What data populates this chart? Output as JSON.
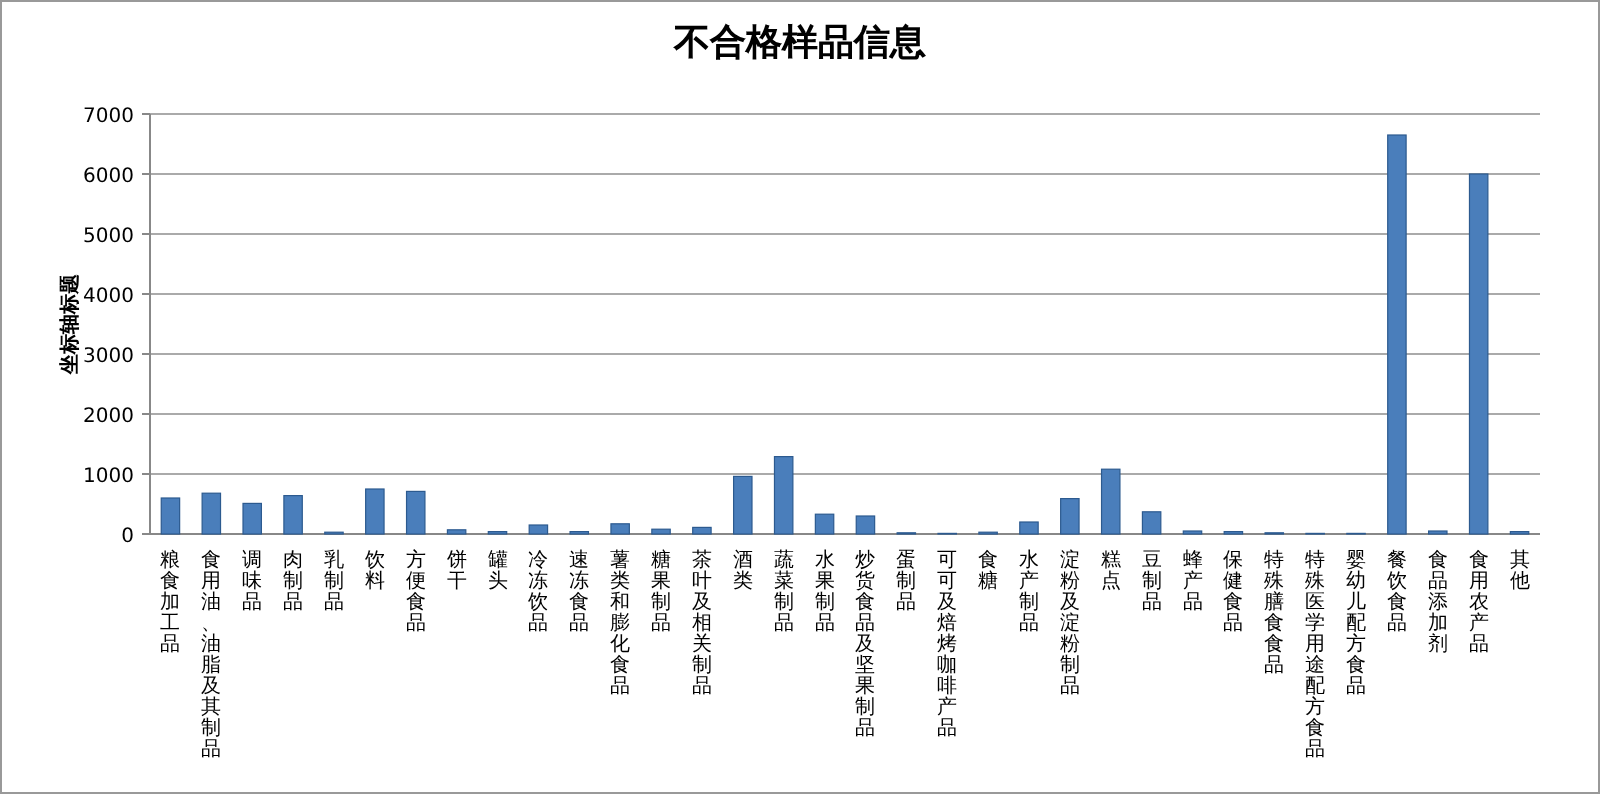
{
  "chart_data": {
    "type": "bar",
    "title": "不合格样品信息",
    "ylabel": "坐标轴标题",
    "categories": [
      "粮食加工品",
      "食用油、油脂及其制品",
      "调味品",
      "肉制品",
      "乳制品",
      "饮料",
      "方便食品",
      "饼干",
      "罐头",
      "冷冻饮品",
      "速冻食品",
      "薯类和膨化食品",
      "糖果制品",
      "茶叶及相关制品",
      "酒类",
      "蔬菜制品",
      "水果制品",
      "炒货食品及坚果制品",
      "蛋制品",
      "可可及焙烤咖啡产品",
      "食糖",
      "水产制品",
      "淀粉及淀粉制品",
      "糕点",
      "豆制品",
      "蜂产品",
      "保健食品",
      "特殊膳食食品",
      "特殊医学用途配方食品",
      "婴幼儿配方食品",
      "餐饮食品",
      "食品添加剂",
      "食用农产品",
      "其他"
    ],
    "values": [
      600,
      680,
      510,
      640,
      30,
      750,
      710,
      70,
      40,
      150,
      40,
      170,
      80,
      110,
      960,
      1290,
      330,
      300,
      20,
      10,
      30,
      200,
      590,
      1080,
      370,
      50,
      40,
      20,
      10,
      10,
      6650,
      50,
      6000,
      40
    ],
    "color": "#4a7ebb",
    "ylim": [
      0,
      7000
    ],
    "yticks": [
      0,
      1000,
      2000,
      3000,
      4000,
      5000,
      6000,
      7000
    ],
    "grid": "y"
  }
}
